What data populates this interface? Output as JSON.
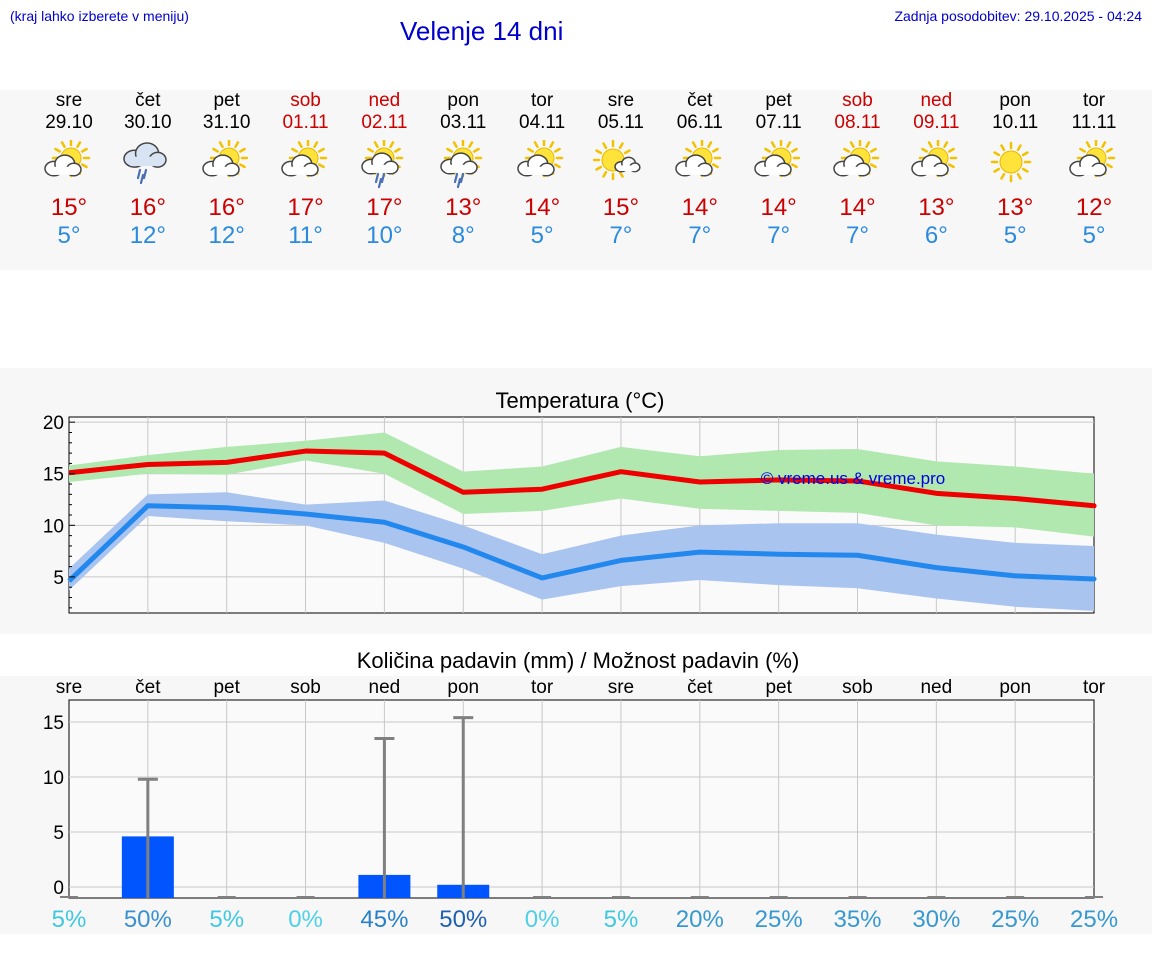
{
  "header": {
    "region_hint": "(kraj lahko izberete v meniju)",
    "title": "Velenje 14 dni",
    "updated": "Zadnja posodobitev: 29.10.2025 - 04:24"
  },
  "days": [
    {
      "name": "sre",
      "date": "29.10",
      "weekend": false,
      "icon": "sun-cloud-icon",
      "max": "15°",
      "min": "5°",
      "rain_day": "sre",
      "rain_chance": "5%"
    },
    {
      "name": "čet",
      "date": "30.10",
      "weekend": false,
      "icon": "cloud-rain-icon",
      "max": "16°",
      "min": "12°",
      "rain_day": "čet",
      "rain_chance": "50%"
    },
    {
      "name": "pet",
      "date": "31.10",
      "weekend": false,
      "icon": "sun-cloud-icon",
      "max": "16°",
      "min": "12°",
      "rain_day": "pet",
      "rain_chance": "5%"
    },
    {
      "name": "sob",
      "date": "01.11",
      "weekend": true,
      "icon": "sun-cloud-icon",
      "max": "17°",
      "min": "11°",
      "rain_day": "sob",
      "rain_chance": "0%"
    },
    {
      "name": "ned",
      "date": "02.11",
      "weekend": true,
      "icon": "sun-cloud-rain-icon",
      "max": "17°",
      "min": "10°",
      "rain_day": "ned",
      "rain_chance": "45%"
    },
    {
      "name": "pon",
      "date": "03.11",
      "weekend": false,
      "icon": "sun-cloud-rain-icon",
      "max": "13°",
      "min": "8°",
      "rain_day": "pon",
      "rain_chance": "50%"
    },
    {
      "name": "tor",
      "date": "04.11",
      "weekend": false,
      "icon": "sun-cloud-icon",
      "max": "14°",
      "min": "5°",
      "rain_day": "tor",
      "rain_chance": "0%"
    },
    {
      "name": "sre",
      "date": "05.11",
      "weekend": false,
      "icon": "sun-small-cloud-icon",
      "max": "15°",
      "min": "7°",
      "rain_day": "sre",
      "rain_chance": "5%"
    },
    {
      "name": "čet",
      "date": "06.11",
      "weekend": false,
      "icon": "sun-cloud-icon",
      "max": "14°",
      "min": "7°",
      "rain_day": "čet",
      "rain_chance": "20%"
    },
    {
      "name": "pet",
      "date": "07.11",
      "weekend": false,
      "icon": "sun-cloud-icon",
      "max": "14°",
      "min": "7°",
      "rain_day": "pet",
      "rain_chance": "25%"
    },
    {
      "name": "sob",
      "date": "08.11",
      "weekend": true,
      "icon": "sun-cloud-icon",
      "max": "14°",
      "min": "7°",
      "rain_day": "sob",
      "rain_chance": "35%"
    },
    {
      "name": "ned",
      "date": "09.11",
      "weekend": true,
      "icon": "sun-cloud-icon",
      "max": "13°",
      "min": "6°",
      "rain_day": "ned",
      "rain_chance": "30%"
    },
    {
      "name": "pon",
      "date": "10.11",
      "weekend": false,
      "icon": "sun-icon",
      "max": "13°",
      "min": "5°",
      "rain_day": "pon",
      "rain_chance": "25%"
    },
    {
      "name": "tor",
      "date": "11.11",
      "weekend": false,
      "icon": "sun-cloud-icon",
      "max": "12°",
      "min": "5°",
      "rain_day": "tor",
      "rain_chance": "25%"
    }
  ],
  "colors": {
    "max_line": "#ee0000",
    "max_band": "#b0e8b0",
    "min_line": "#2288ee",
    "min_band": "#aac4f0",
    "rain_bar": "#0055ff",
    "whisker": "#808080",
    "grid": "#c8c8c8"
  },
  "chart_data": [
    {
      "type": "line",
      "title": "Temperatura (°C)",
      "watermark": "© vreme.us & vreme.pro",
      "ylim": [
        1.5,
        20.5
      ],
      "yticks": [
        5,
        10,
        15,
        20
      ],
      "x": [
        0,
        1,
        2,
        3,
        4,
        5,
        6,
        7,
        8,
        9,
        10,
        11,
        12,
        13
      ],
      "x_end": 13.5,
      "series": [
        {
          "name": "max",
          "values": [
            15.1,
            15.9,
            16.1,
            17.2,
            17.0,
            13.2,
            13.5,
            15.2,
            14.2,
            14.4,
            14.3,
            13.1,
            12.6,
            11.9
          ],
          "end": 11.9,
          "band_low": [
            14.2,
            15.0,
            14.9,
            16.3,
            15.0,
            11.1,
            11.4,
            12.6,
            11.6,
            11.4,
            11.2,
            10.0,
            9.8,
            8.9
          ],
          "band_low_end": 8.7,
          "band_high": [
            15.8,
            16.8,
            17.6,
            18.2,
            19.0,
            15.2,
            15.7,
            17.6,
            16.7,
            17.3,
            17.4,
            16.2,
            15.7,
            15.0
          ],
          "band_high_end": 15.0
        },
        {
          "name": "min",
          "values": [
            4.6,
            11.9,
            11.7,
            11.1,
            10.3,
            7.9,
            4.9,
            6.6,
            7.4,
            7.2,
            7.1,
            5.9,
            5.1,
            4.8
          ],
          "end": 4.8,
          "band_low": [
            3.7,
            10.9,
            10.4,
            10.0,
            8.3,
            5.8,
            2.8,
            4.1,
            4.7,
            4.2,
            3.9,
            2.9,
            2.1,
            1.7
          ],
          "band_low_end": 1.7,
          "band_high": [
            5.8,
            13.0,
            13.2,
            12.0,
            12.4,
            10.0,
            7.2,
            9.0,
            10.0,
            10.2,
            10.2,
            9.1,
            8.3,
            8.0
          ],
          "band_high_end": 8.0
        }
      ]
    },
    {
      "type": "bar",
      "title": "Količina padavin (mm) / Možnost padavin (%)",
      "ylim": [
        -1,
        17
      ],
      "yticks": [
        0,
        5,
        10,
        15
      ],
      "categories": [
        "sre",
        "čet",
        "pet",
        "sob",
        "ned",
        "pon",
        "tor",
        "sre",
        "čet",
        "pet",
        "sob",
        "ned",
        "pon",
        "tor"
      ],
      "values": [
        0,
        4.6,
        0,
        0,
        1.1,
        0.2,
        0,
        0,
        0,
        0,
        0,
        0,
        0,
        0
      ],
      "max_values": [
        0,
        9.8,
        0,
        0,
        13.5,
        15.4,
        0,
        0,
        0,
        0,
        0,
        0,
        0,
        0
      ],
      "chance": [
        "5%",
        "50%",
        "5%",
        "0%",
        "45%",
        "50%",
        "0%",
        "5%",
        "20%",
        "25%",
        "35%",
        "30%",
        "25%",
        "25%"
      ]
    }
  ]
}
